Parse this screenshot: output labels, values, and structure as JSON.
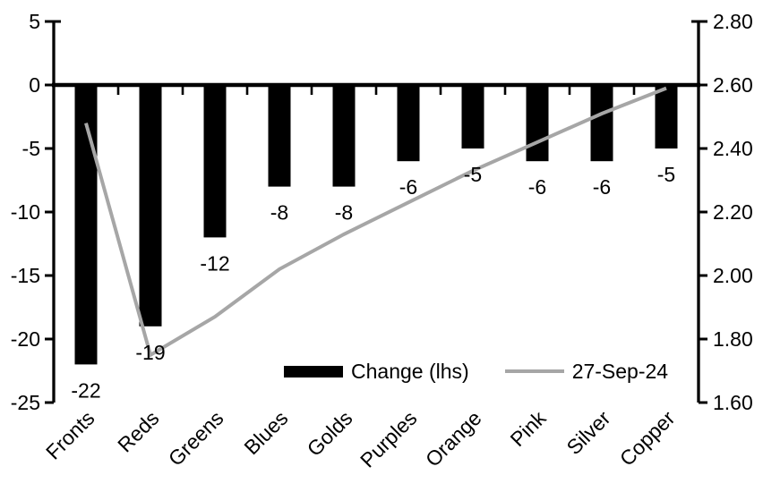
{
  "chart_data": {
    "type": "combo",
    "subtype": "bar+line",
    "background": "#ffffff",
    "categories": [
      "Fronts",
      "Reds",
      "Greens",
      "Blues",
      "Golds",
      "Purples",
      "Orange",
      "Pink",
      "Silver",
      "Copper"
    ],
    "series": [
      {
        "name": "Change (lhs)",
        "type": "bar",
        "axis": "left",
        "color": "#000000",
        "values": [
          -22,
          -19,
          -12,
          -8,
          -8,
          -6,
          -5,
          -6,
          -6,
          -5
        ],
        "data_labels": [
          "-22",
          "-19",
          "-12",
          "-8",
          "-8",
          "-6",
          "-5",
          "-6",
          "-6",
          "-5"
        ]
      },
      {
        "name": "27-Sep-24",
        "type": "line",
        "axis": "right",
        "color": "#a6a6a6",
        "values": [
          2.48,
          1.75,
          1.87,
          2.02,
          2.13,
          2.23,
          2.33,
          2.42,
          2.51,
          2.59
        ]
      }
    ],
    "left_axis": {
      "min": -25,
      "max": 5,
      "tick_step": 5,
      "tick_labels": [
        "5",
        "0",
        "-5",
        "-10",
        "-15",
        "-20",
        "-25"
      ]
    },
    "right_axis": {
      "min": 1.6,
      "max": 2.8,
      "tick_step": 0.2,
      "tick_labels": [
        "2.80",
        "2.60",
        "2.40",
        "2.20",
        "2.00",
        "1.80",
        "1.60"
      ]
    },
    "grid": "off",
    "legend_position": "bottom-center",
    "title": "",
    "xlabel": "",
    "ylabel": ""
  }
}
